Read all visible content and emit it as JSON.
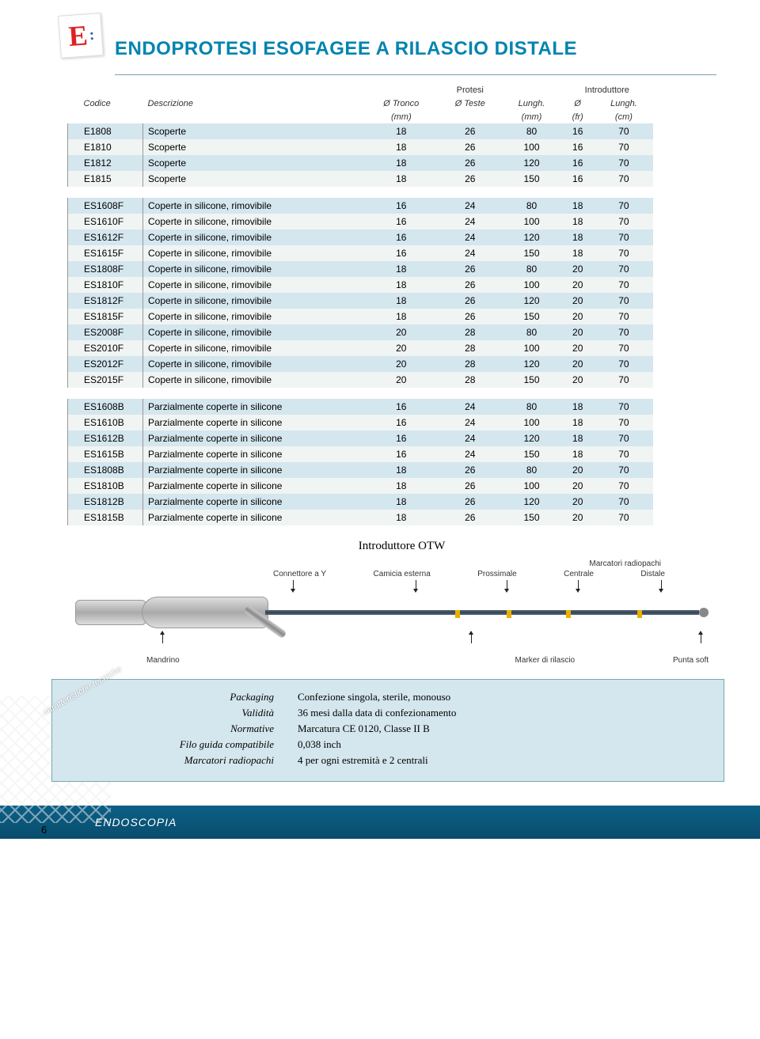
{
  "logo_letter": "E",
  "title": "ENDOPROTESI ESOFAGEE A RILASCIO DISTALE",
  "table": {
    "head1": {
      "codice": "Codice",
      "descr": "Descrizione",
      "protesi": "Protesi",
      "intro": "Introduttore"
    },
    "head2": {
      "tronco": "Ø Tronco",
      "teste": "Ø Teste",
      "lungh": "Lungh.",
      "diam": "Ø",
      "lungh2": "Lungh."
    },
    "head3": {
      "mm": "(mm)",
      "mm2": "(mm)",
      "fr": "(fr)",
      "cm": "(cm)"
    },
    "section1": [
      {
        "code": "E1808",
        "desc": "Scoperte",
        "v": [
          "18",
          "26",
          "80",
          "16",
          "70"
        ]
      },
      {
        "code": "E1810",
        "desc": "Scoperte",
        "v": [
          "18",
          "26",
          "100",
          "16",
          "70"
        ]
      },
      {
        "code": "E1812",
        "desc": "Scoperte",
        "v": [
          "18",
          "26",
          "120",
          "16",
          "70"
        ]
      },
      {
        "code": "E1815",
        "desc": "Scoperte",
        "v": [
          "18",
          "26",
          "150",
          "16",
          "70"
        ]
      }
    ],
    "section2": [
      {
        "code": "ES1608F",
        "desc": "Coperte in silicone, rimovibile",
        "v": [
          "16",
          "24",
          "80",
          "18",
          "70"
        ]
      },
      {
        "code": "ES1610F",
        "desc": "Coperte in silicone, rimovibile",
        "v": [
          "16",
          "24",
          "100",
          "18",
          "70"
        ]
      },
      {
        "code": "ES1612F",
        "desc": "Coperte in silicone, rimovibile",
        "v": [
          "16",
          "24",
          "120",
          "18",
          "70"
        ]
      },
      {
        "code": "ES1615F",
        "desc": "Coperte in silicone, rimovibile",
        "v": [
          "16",
          "24",
          "150",
          "18",
          "70"
        ]
      },
      {
        "code": "ES1808F",
        "desc": "Coperte in silicone, rimovibile",
        "v": [
          "18",
          "26",
          "80",
          "20",
          "70"
        ]
      },
      {
        "code": "ES1810F",
        "desc": "Coperte in silicone, rimovibile",
        "v": [
          "18",
          "26",
          "100",
          "20",
          "70"
        ]
      },
      {
        "code": "ES1812F",
        "desc": "Coperte in silicone, rimovibile",
        "v": [
          "18",
          "26",
          "120",
          "20",
          "70"
        ]
      },
      {
        "code": "ES1815F",
        "desc": "Coperte in silicone, rimovibile",
        "v": [
          "18",
          "26",
          "150",
          "20",
          "70"
        ]
      },
      {
        "code": "ES2008F",
        "desc": "Coperte in silicone, rimovibile",
        "v": [
          "20",
          "28",
          "80",
          "20",
          "70"
        ]
      },
      {
        "code": "ES2010F",
        "desc": "Coperte in silicone, rimovibile",
        "v": [
          "20",
          "28",
          "100",
          "20",
          "70"
        ]
      },
      {
        "code": "ES2012F",
        "desc": "Coperte in silicone, rimovibile",
        "v": [
          "20",
          "28",
          "120",
          "20",
          "70"
        ]
      },
      {
        "code": "ES2015F",
        "desc": "Coperte in silicone, rimovibile",
        "v": [
          "20",
          "28",
          "150",
          "20",
          "70"
        ]
      }
    ],
    "section3": [
      {
        "code": "ES1608B",
        "desc": "Parzialmente coperte in silicone",
        "v": [
          "16",
          "24",
          "80",
          "18",
          "70"
        ]
      },
      {
        "code": "ES1610B",
        "desc": "Parzialmente coperte in silicone",
        "v": [
          "16",
          "24",
          "100",
          "18",
          "70"
        ]
      },
      {
        "code": "ES1612B",
        "desc": "Parzialmente coperte in silicone",
        "v": [
          "16",
          "24",
          "120",
          "18",
          "70"
        ]
      },
      {
        "code": "ES1615B",
        "desc": "Parzialmente coperte in silicone",
        "v": [
          "16",
          "24",
          "150",
          "18",
          "70"
        ]
      },
      {
        "code": "ES1808B",
        "desc": "Parzialmente coperte in silicone",
        "v": [
          "18",
          "26",
          "80",
          "20",
          "70"
        ]
      },
      {
        "code": "ES1810B",
        "desc": "Parzialmente coperte in silicone",
        "v": [
          "18",
          "26",
          "100",
          "20",
          "70"
        ]
      },
      {
        "code": "ES1812B",
        "desc": "Parzialmente coperte in silicone",
        "v": [
          "18",
          "26",
          "120",
          "20",
          "70"
        ]
      },
      {
        "code": "ES1815B",
        "desc": "Parzialmente coperte in silicone",
        "v": [
          "18",
          "26",
          "150",
          "20",
          "70"
        ]
      }
    ]
  },
  "diagram": {
    "title": "Introduttore OTW",
    "labels": {
      "connettore": "Connettore a Y",
      "camicia": "Camicia esterna",
      "marcatori": "Marcatori radiopachi",
      "prossimale": "Prossimale",
      "centrale": "Centrale",
      "distale": "Distale",
      "mandrino": "Mandrino",
      "marker": "Marker di rilascio",
      "punta": "Punta soft"
    }
  },
  "tech": {
    "tag": "caratteristiche tecniche",
    "rows": [
      {
        "k": "Packaging",
        "v": "Confezione singola, sterile, monouso"
      },
      {
        "k": "Validità",
        "v": "36 mesi dalla data di confezionamento"
      },
      {
        "k": "Normative",
        "v": "Marcatura CE 0120, Classe II B"
      },
      {
        "k": "Filo guida compatibile",
        "v": "0,038 inch"
      },
      {
        "k": "Marcatori radiopachi",
        "v": "4 per ogni estremità e 2 centrali"
      }
    ]
  },
  "page": "6",
  "footer": "ENDOSCOPIA"
}
